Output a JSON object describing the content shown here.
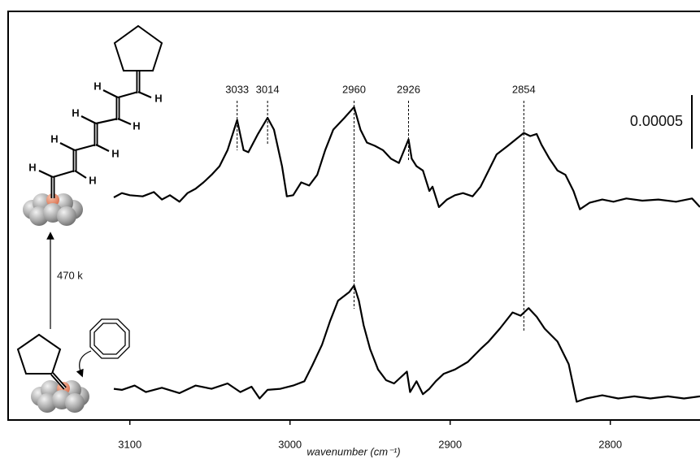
{
  "chart_data": {
    "type": "line",
    "xlabel": "wavenumber (cm⁻¹)",
    "xlim": [
      3176,
      2744
    ],
    "xticks": [
      3100,
      3000,
      2900,
      2800
    ],
    "ylim": [
      0,
      0.00038
    ],
    "scale_bar": {
      "value": 5e-05,
      "label": "0.00005"
    },
    "peaks": [
      3033,
      3014,
      2960,
      2926,
      2854
    ],
    "arrow_label": "470 k",
    "atom_label": "H",
    "series": [
      {
        "color": "#000000",
        "x": [
          3110,
          3105,
          3100,
          3092,
          3085,
          3080,
          3075,
          3069,
          3064,
          3059,
          3054,
          3049,
          3044,
          3039,
          3033,
          3029,
          3026,
          3020,
          3014,
          3010,
          3005,
          3002,
          2998,
          2993,
          2988,
          2983,
          2978,
          2973,
          2966,
          2960,
          2956,
          2952,
          2947,
          2942,
          2937,
          2932,
          2926,
          2924,
          2921,
          2917,
          2913,
          2911,
          2907,
          2902,
          2897,
          2892,
          2886,
          2881,
          2876,
          2871,
          2864,
          2854,
          2850,
          2846,
          2843,
          2838,
          2833,
          2828,
          2823,
          2819,
          2813,
          2805,
          2798,
          2790,
          2780,
          2770,
          2759,
          2749,
          2744
        ],
        "values": [
          0.000207,
          0.000211,
          0.000209,
          0.000208,
          0.000212,
          0.000205,
          0.000209,
          0.000203,
          0.000211,
          0.000215,
          0.000221,
          0.000228,
          0.000236,
          0.000251,
          0.000279,
          0.000251,
          0.000249,
          0.000266,
          0.000281,
          0.00027,
          0.000236,
          0.000208,
          0.000209,
          0.000221,
          0.000218,
          0.000228,
          0.000251,
          0.00027,
          0.000281,
          0.000291,
          0.00027,
          0.000258,
          0.000255,
          0.000251,
          0.000243,
          0.000239,
          0.000261,
          0.000243,
          0.000236,
          0.000232,
          0.000213,
          0.000217,
          0.000198,
          0.000205,
          0.000209,
          0.000211,
          0.000208,
          0.000217,
          0.000232,
          0.000247,
          0.000255,
          0.000267,
          0.000264,
          0.000266,
          0.000256,
          0.000243,
          0.000232,
          0.000228,
          0.000213,
          0.000196,
          0.000202,
          0.000205,
          0.000203,
          0.000206,
          0.000204,
          0.000205,
          0.000203,
          0.000206,
          0.000198
        ]
      },
      {
        "color": "#000000",
        "x": [
          3110,
          3105,
          3097,
          3090,
          3080,
          3069,
          3059,
          3049,
          3039,
          3031,
          3024,
          3019,
          3014,
          3006,
          2998,
          2991,
          2986,
          2980,
          2975,
          2970,
          2963,
          2960,
          2957,
          2954,
          2950,
          2945,
          2940,
          2935,
          2927,
          2925,
          2921,
          2917,
          2913,
          2909,
          2904,
          2897,
          2889,
          2881,
          2876,
          2869,
          2861,
          2856,
          2851,
          2846,
          2841,
          2833,
          2826,
          2821,
          2815,
          2805,
          2795,
          2785,
          2775,
          2764,
          2754,
          2744
        ],
        "values": [
          2.9e-05,
          2.8e-05,
          3.2e-05,
          2.6e-05,
          3e-05,
          2.5e-05,
          3.2e-05,
          2.9e-05,
          3.4e-05,
          2.6e-05,
          3.1e-05,
          2e-05,
          2.8e-05,
          2.9e-05,
          3.2e-05,
          3.6e-05,
          5.1e-05,
          7e-05,
          9.2e-05,
          0.000111,
          0.000119,
          0.000125,
          0.000111,
          8.8e-05,
          6.6e-05,
          4.7e-05,
          3.7e-05,
          3.4e-05,
          4.5e-05,
          2.6e-05,
          3.6e-05,
          2.4e-05,
          2.9e-05,
          3.6e-05,
          4.3e-05,
          4.7e-05,
          5.4e-05,
          6.6e-05,
          7.3e-05,
          8.5e-05,
          0.0001,
          9.7e-05,
          0.000104,
          9.6e-05,
          8.5e-05,
          7.3e-05,
          5.2e-05,
          1.7e-05,
          2e-05,
          2.3e-05,
          2e-05,
          2.2e-05,
          2e-05,
          2.2e-05,
          2e-05,
          2.2e-05
        ]
      }
    ]
  }
}
